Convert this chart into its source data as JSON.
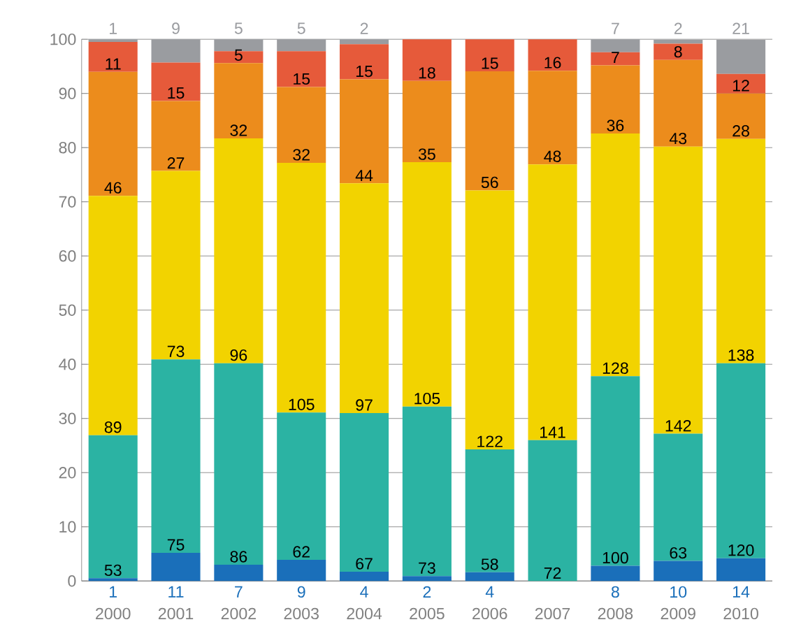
{
  "chart_data": {
    "type": "bar",
    "stacked": true,
    "categories": [
      "2000",
      "2001",
      "2002",
      "2003",
      "2004",
      "2005",
      "2006",
      "2007",
      "2008",
      "2009",
      "2010"
    ],
    "series": [
      {
        "color": "#1a6fba",
        "values": [
          0.5,
          5.2,
          3.0,
          3.9,
          1.7,
          0.9,
          1.6,
          0,
          2.8,
          3.7,
          4.2
        ]
      },
      {
        "color": "#2bb3a3",
        "values": [
          26.4,
          35.7,
          37.2,
          27.2,
          29.3,
          31.3,
          22.7,
          26.0,
          35.0,
          23.5,
          36.0
        ]
      },
      {
        "color": "#f2d300",
        "values": [
          44.2,
          34.8,
          41.5,
          46.1,
          42.4,
          45.1,
          47.8,
          50.9,
          44.8,
          53.0,
          41.4
        ]
      },
      {
        "color": "#ec8c1c",
        "values": [
          22.9,
          12.9,
          13.9,
          14.0,
          19.2,
          15.0,
          22.0,
          17.3,
          12.6,
          16.0,
          8.4
        ]
      },
      {
        "color": "#e65a3a",
        "values": [
          5.5,
          7.1,
          2.2,
          6.6,
          6.5,
          7.7,
          5.9,
          5.8,
          2.4,
          3.0,
          3.6
        ]
      },
      {
        "color": "#9a9ca0",
        "values": [
          0.5,
          4.3,
          2.2,
          2.2,
          0.9,
          0,
          0,
          0,
          2.4,
          0.7,
          6.3
        ]
      }
    ],
    "annotations": [
      {
        "text": "1",
        "x": "2000",
        "y": 0
      },
      {
        "text": "53",
        "x": "2000",
        "y": 0.5
      },
      {
        "text": "89",
        "x": "2000",
        "y": 26.9
      },
      {
        "text": "46",
        "x": "2000",
        "y": 71.1
      },
      {
        "text": "11",
        "x": "2000",
        "y": 94.0
      },
      {
        "text": "1",
        "x": "2000",
        "y": 100
      },
      {
        "text": "11",
        "x": "2001",
        "y": 0
      },
      {
        "text": "75",
        "x": "2001",
        "y": 5.2
      },
      {
        "text": "73",
        "x": "2001",
        "y": 40.9
      },
      {
        "text": "27",
        "x": "2001",
        "y": 75.7
      },
      {
        "text": "15",
        "x": "2001",
        "y": 88.6
      },
      {
        "text": "9",
        "x": "2001",
        "y": 100
      },
      {
        "text": "7",
        "x": "2002",
        "y": 0
      },
      {
        "text": "86",
        "x": "2002",
        "y": 3.0
      },
      {
        "text": "96",
        "x": "2002",
        "y": 40.2
      },
      {
        "text": "32",
        "x": "2002",
        "y": 81.7
      },
      {
        "text": "5",
        "x": "2002",
        "y": 95.6
      },
      {
        "text": "5",
        "x": "2002",
        "y": 100
      },
      {
        "text": "9",
        "x": "2003",
        "y": 0
      },
      {
        "text": "62",
        "x": "2003",
        "y": 3.9
      },
      {
        "text": "105",
        "x": "2003",
        "y": 31.1
      },
      {
        "text": "32",
        "x": "2003",
        "y": 77.2
      },
      {
        "text": "15",
        "x": "2003",
        "y": 91.2
      },
      {
        "text": "5",
        "x": "2003",
        "y": 100
      },
      {
        "text": "4",
        "x": "2004",
        "y": 0
      },
      {
        "text": "67",
        "x": "2004",
        "y": 1.7
      },
      {
        "text": "97",
        "x": "2004",
        "y": 31.0
      },
      {
        "text": "44",
        "x": "2004",
        "y": 73.4
      },
      {
        "text": "15",
        "x": "2004",
        "y": 92.6
      },
      {
        "text": "2",
        "x": "2004",
        "y": 100
      },
      {
        "text": "2",
        "x": "2005",
        "y": 0
      },
      {
        "text": "73",
        "x": "2005",
        "y": 0.9
      },
      {
        "text": "105",
        "x": "2005",
        "y": 32.2
      },
      {
        "text": "35",
        "x": "2005",
        "y": 77.3
      },
      {
        "text": "18",
        "x": "2005",
        "y": 92.3
      },
      {
        "text": "4",
        "x": "2006",
        "y": 0
      },
      {
        "text": "58",
        "x": "2006",
        "y": 1.6
      },
      {
        "text": "122",
        "x": "2006",
        "y": 24.3
      },
      {
        "text": "56",
        "x": "2006",
        "y": 72.1
      },
      {
        "text": "15",
        "x": "2006",
        "y": 94.1
      },
      {
        "text": "72",
        "x": "2007",
        "y": 0
      },
      {
        "text": "141",
        "x": "2007",
        "y": 26.0
      },
      {
        "text": "48",
        "x": "2007",
        "y": 76.9
      },
      {
        "text": "16",
        "x": "2007",
        "y": 94.2
      },
      {
        "text": "8",
        "x": "2008",
        "y": 0
      },
      {
        "text": "100",
        "x": "2008",
        "y": 2.8
      },
      {
        "text": "128",
        "x": "2008",
        "y": 37.8
      },
      {
        "text": "36",
        "x": "2008",
        "y": 82.6
      },
      {
        "text": "7",
        "x": "2008",
        "y": 95.2
      },
      {
        "text": "7",
        "x": "2008",
        "y": 100
      },
      {
        "text": "10",
        "x": "2009",
        "y": 0
      },
      {
        "text": "63",
        "x": "2009",
        "y": 3.7
      },
      {
        "text": "142",
        "x": "2009",
        "y": 27.2
      },
      {
        "text": "43",
        "x": "2009",
        "y": 80.2
      },
      {
        "text": "8",
        "x": "2009",
        "y": 96.2
      },
      {
        "text": "2",
        "x": "2009",
        "y": 100
      },
      {
        "text": "14",
        "x": "2010",
        "y": 0
      },
      {
        "text": "120",
        "x": "2010",
        "y": 4.2
      },
      {
        "text": "138",
        "x": "2010",
        "y": 40.2
      },
      {
        "text": "28",
        "x": "2010",
        "y": 81.6
      },
      {
        "text": "12",
        "x": "2010",
        "y": 90.0
      },
      {
        "text": "21",
        "x": "2010",
        "y": 100
      }
    ],
    "ylim": [
      0,
      100
    ],
    "yticks": [
      0,
      10,
      20,
      30,
      40,
      50,
      60,
      70,
      80,
      90,
      100
    ],
    "grid": "y"
  }
}
